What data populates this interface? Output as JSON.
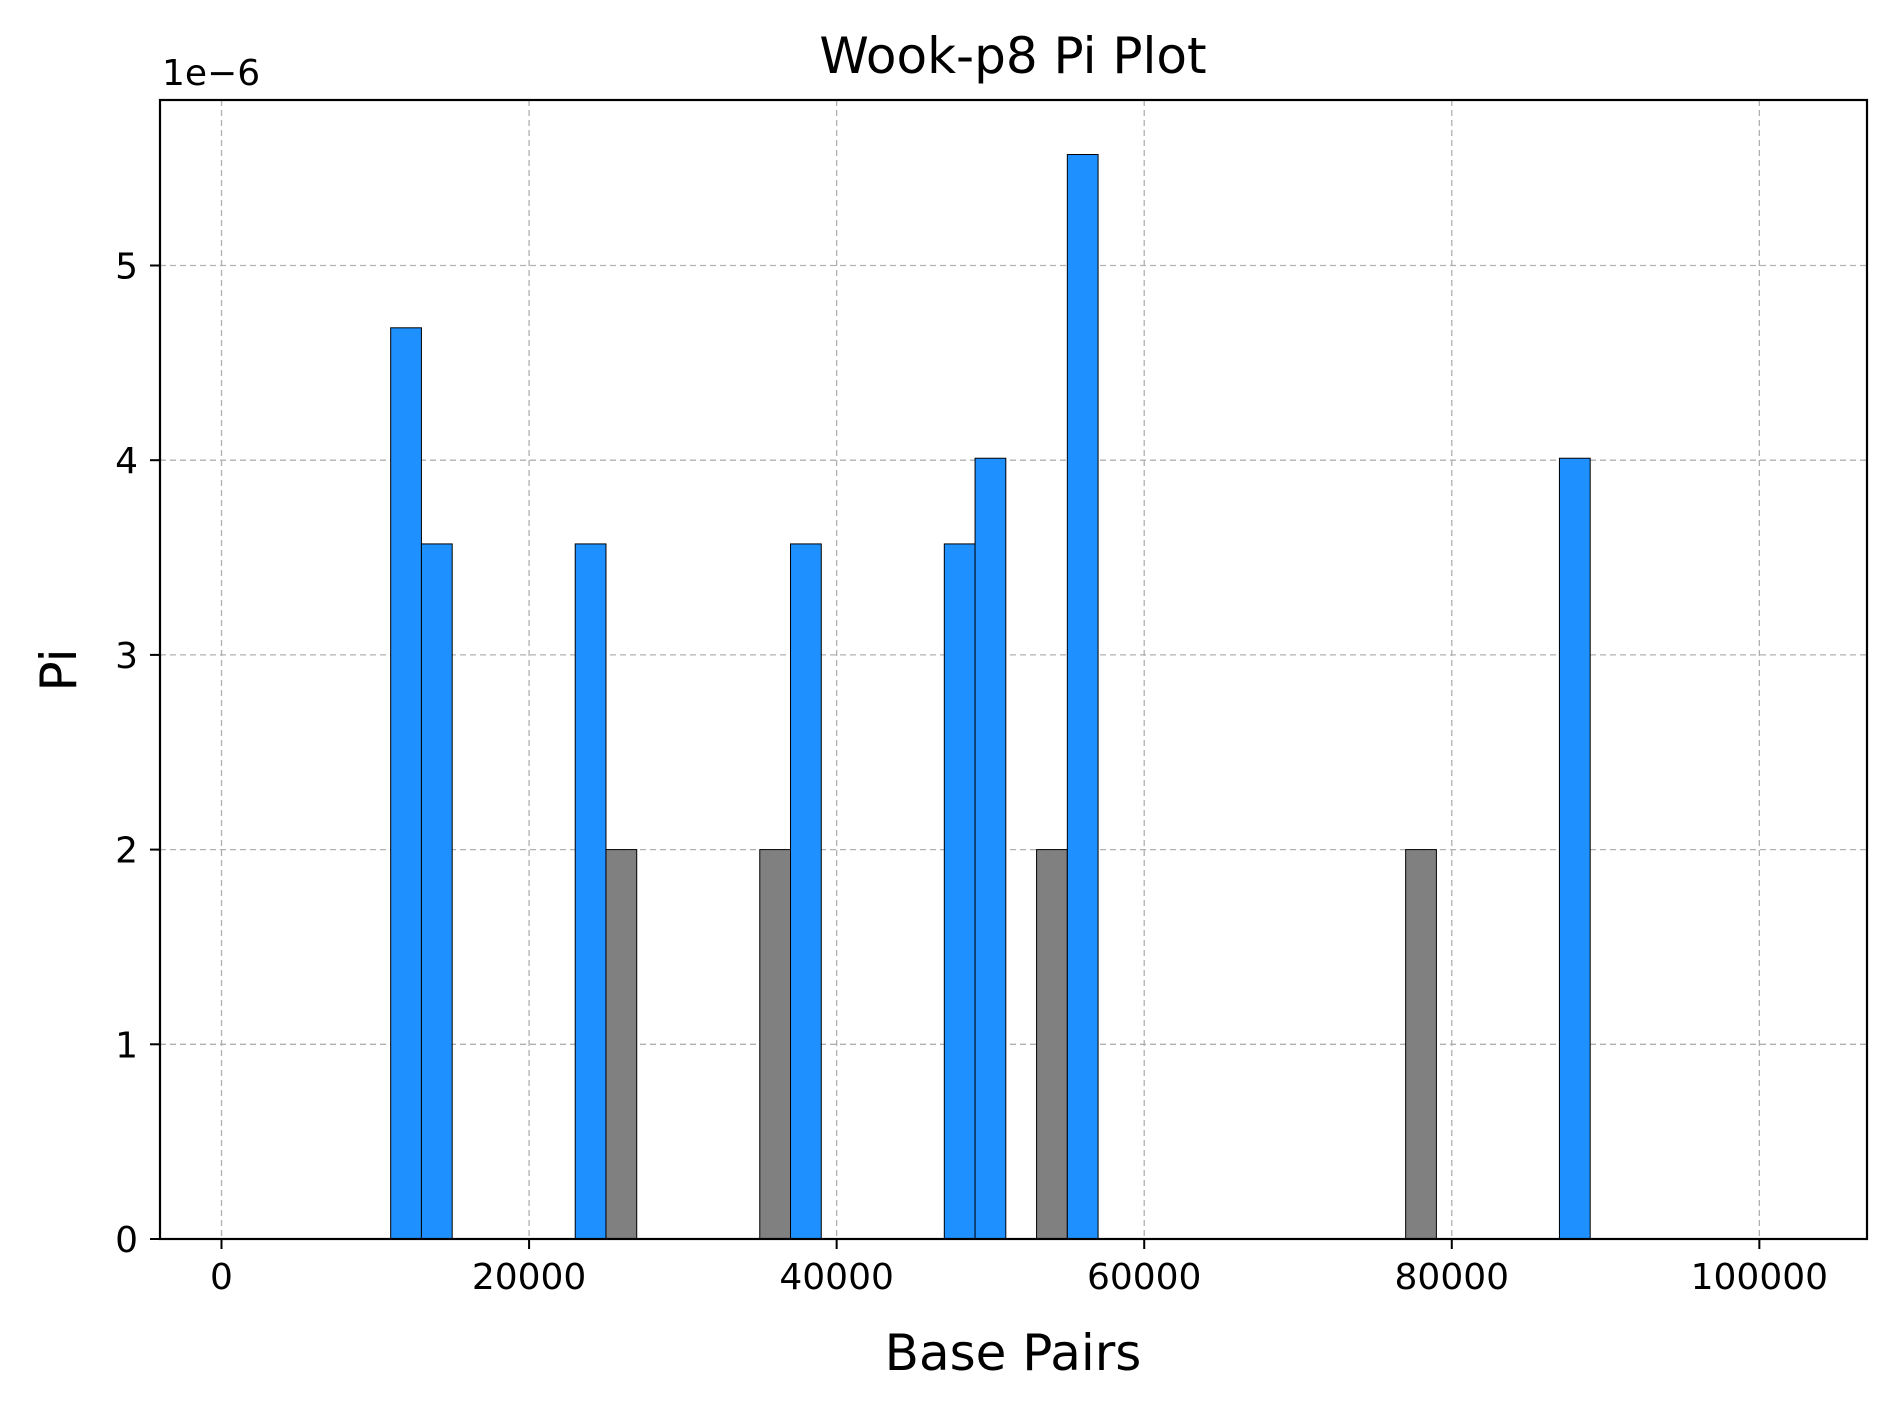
{
  "chart_data": {
    "type": "bar",
    "title": "Wook-p8 Pi Plot",
    "xlabel": "Base Pairs",
    "ylabel": "Pi",
    "y_offset_label": "1e−6",
    "xlim": [
      -4000,
      107000
    ],
    "ylim": [
      0,
      5.85
    ],
    "x_ticks": [
      0,
      20000,
      40000,
      60000,
      80000,
      100000
    ],
    "y_ticks": [
      0,
      1,
      2,
      3,
      4,
      5
    ],
    "grid": true,
    "bar_width": 2000,
    "colors": {
      "blue": "#1e90ff",
      "gray": "#808080"
    },
    "bars": [
      {
        "x": 11000,
        "value": 4.68,
        "color": "blue"
      },
      {
        "x": 13000,
        "value": 3.57,
        "color": "blue"
      },
      {
        "x": 23000,
        "value": 3.57,
        "color": "blue"
      },
      {
        "x": 25000,
        "value": 2.0,
        "color": "gray"
      },
      {
        "x": 35000,
        "value": 2.0,
        "color": "gray"
      },
      {
        "x": 37000,
        "value": 3.57,
        "color": "blue"
      },
      {
        "x": 47000,
        "value": 3.57,
        "color": "blue"
      },
      {
        "x": 49000,
        "value": 4.01,
        "color": "blue"
      },
      {
        "x": 53000,
        "value": 2.0,
        "color": "gray"
      },
      {
        "x": 55000,
        "value": 5.57,
        "color": "blue"
      },
      {
        "x": 77000,
        "value": 2.0,
        "color": "gray"
      },
      {
        "x": 87000,
        "value": 4.01,
        "color": "blue"
      }
    ]
  }
}
